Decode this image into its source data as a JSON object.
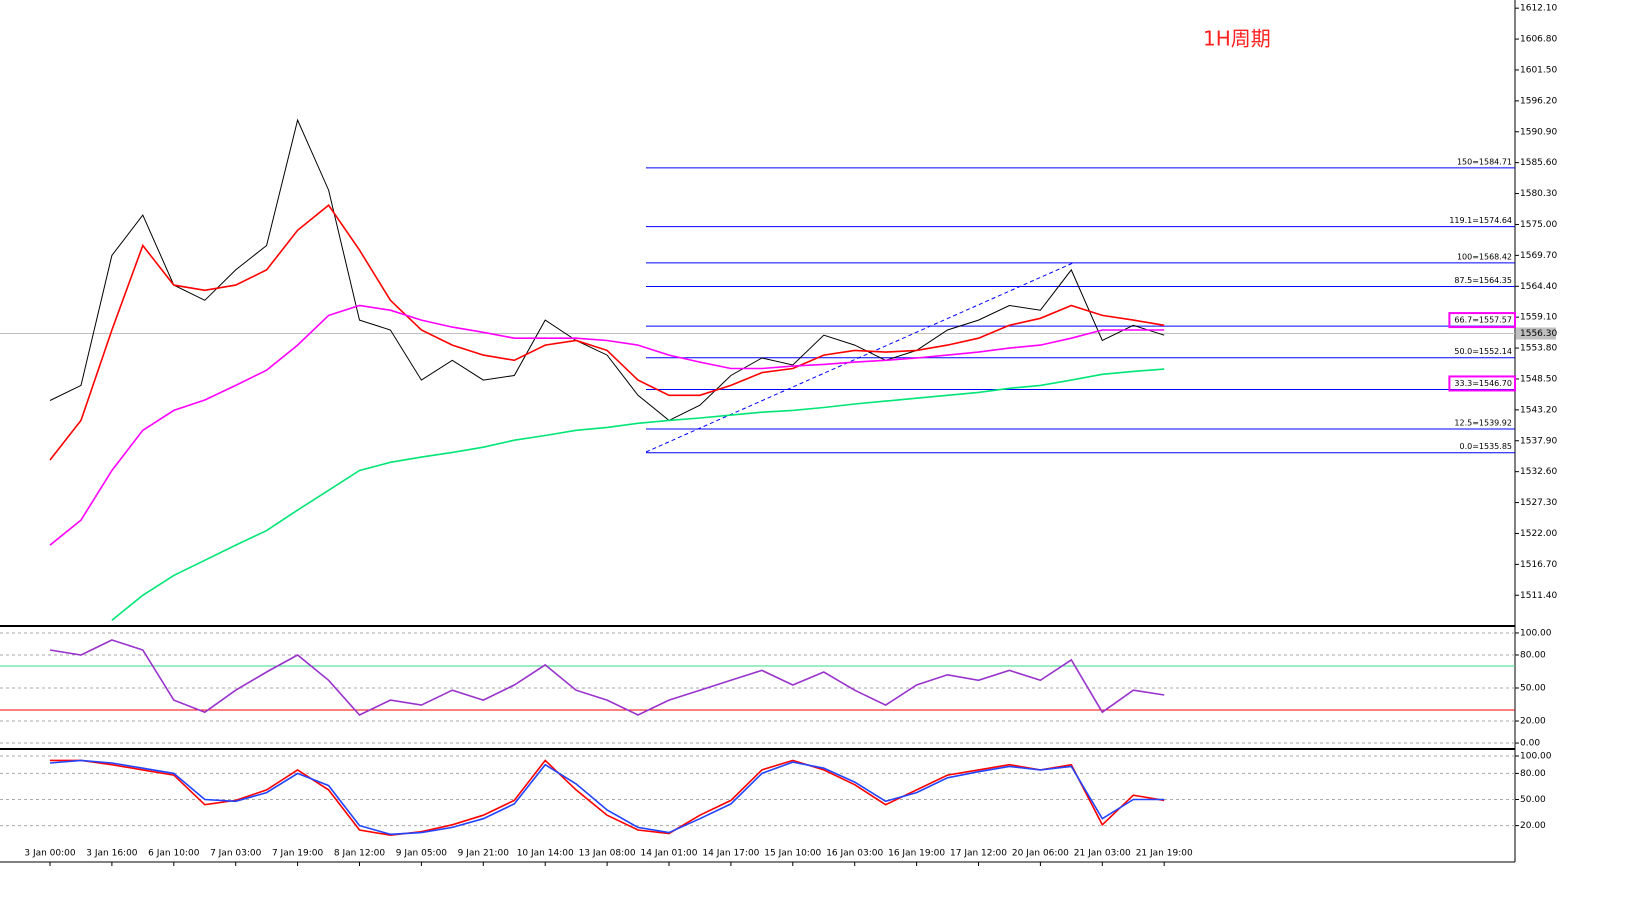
{
  "chart_data": [
    {
      "type": "line",
      "annotation": "1H周期",
      "categories": [
        "3 Jan 00:00",
        null,
        "3 Jan 16:00",
        null,
        "6 Jan 10:00",
        null,
        "7 Jan 03:00",
        null,
        "7 Jan 19:00",
        null,
        "8 Jan 12:00",
        null,
        "9 Jan 05:00",
        null,
        "9 Jan 21:00",
        null,
        "10 Jan 14:00",
        null,
        "13 Jan 08:00",
        null,
        "14 Jan 01:00",
        null,
        "14 Jan 17:00",
        null,
        "15 Jan 10:00",
        null,
        "16 Jan 03:00",
        null,
        "16 Jan 19:00",
        null,
        "17 Jan 12:00",
        null,
        "20 Jan 06:00",
        null,
        "21 Jan 03:00",
        null,
        "21 Jan 19:00"
      ],
      "series": [
        {
          "color": "#000000",
          "values": [
            1544.8,
            1547.4,
            1569.7,
            1576.6,
            1564.6,
            1562.0,
            1567.2,
            1571.4,
            1592.9,
            1580.9,
            1558.6,
            1556.9,
            1548.3,
            1551.7,
            1548.3,
            1549.1,
            1558.6,
            1555.1,
            1552.6,
            1545.7,
            1541.4,
            1544.0,
            1549.1,
            1552.1,
            1550.9,
            1556.0,
            1554.3,
            1551.7,
            1553.4,
            1556.9,
            1558.6,
            1561.1,
            1560.3,
            1567.2,
            1555.1,
            1557.7,
            1556.0
          ]
        },
        {
          "color": "#ff0000",
          "values": [
            1534.6,
            1541.4,
            1556.9,
            1571.4,
            1564.6,
            1563.7,
            1564.6,
            1567.2,
            1574.0,
            1578.3,
            1570.6,
            1562.0,
            1556.9,
            1554.3,
            1552.6,
            1551.7,
            1554.3,
            1555.1,
            1553.4,
            1548.3,
            1545.7,
            1545.7,
            1547.4,
            1549.6,
            1550.3,
            1552.6,
            1553.4,
            1553.1,
            1553.4,
            1554.3,
            1555.5,
            1557.7,
            1558.9,
            1561.1,
            1559.4,
            1558.6,
            1557.7
          ]
        },
        {
          "color": "#ff00ff",
          "values": [
            1520.0,
            1524.3,
            1532.8,
            1539.7,
            1543.1,
            1544.9,
            1547.4,
            1550.0,
            1554.3,
            1559.4,
            1561.1,
            1560.3,
            1558.6,
            1557.4,
            1556.5,
            1555.5,
            1555.5,
            1555.5,
            1555.1,
            1554.3,
            1552.6,
            1551.4,
            1550.3,
            1550.3,
            1550.7,
            1551.0,
            1551.4,
            1551.7,
            1552.1,
            1552.6,
            1553.1,
            1553.8,
            1554.3,
            1555.5,
            1556.9,
            1556.9,
            1556.9
          ]
        },
        {
          "color": "#00e676",
          "values": [
            null,
            null,
            1507.1,
            1511.4,
            1514.8,
            1517.4,
            1520.0,
            1522.5,
            1526.0,
            1529.4,
            1532.8,
            1534.2,
            1535.1,
            1535.9,
            1536.8,
            1538.0,
            1538.8,
            1539.7,
            1540.2,
            1540.9,
            1541.4,
            1541.8,
            1542.3,
            1542.8,
            1543.1,
            1543.6,
            1544.2,
            1544.7,
            1545.2,
            1545.7,
            1546.2,
            1546.9,
            1547.4,
            1548.3,
            1549.3,
            1549.8,
            1550.2
          ]
        }
      ],
      "ylim": [
        1506.3,
        1613.5
      ],
      "yticks": [
        {
          "value": 1612.1,
          "label": "1612.10"
        },
        {
          "value": 1606.8,
          "label": "1606.80"
        },
        {
          "value": 1601.5,
          "label": "1601.50"
        },
        {
          "value": 1596.2,
          "label": "1596.20"
        },
        {
          "value": 1590.9,
          "label": "1590.90"
        },
        {
          "value": 1585.6,
          "label": "1585.60"
        },
        {
          "value": 1580.3,
          "label": "1580.30"
        },
        {
          "value": 1575,
          "label": "1575.00"
        },
        {
          "value": 1569.7,
          "label": "1569.70"
        },
        {
          "value": 1564.4,
          "label": "1564.40"
        },
        {
          "value": 1559.1,
          "label": "1559.10"
        },
        {
          "value": 1553.8,
          "label": "1553.80"
        },
        {
          "value": 1548.5,
          "label": "1548.50"
        },
        {
          "value": 1543.2,
          "label": "1543.20"
        },
        {
          "value": 1537.9,
          "label": "1537.90"
        },
        {
          "value": 1532.6,
          "label": "1532.60"
        },
        {
          "value": 1527.3,
          "label": "1527.30"
        },
        {
          "value": 1522,
          "label": "1522.00"
        },
        {
          "value": 1516.7,
          "label": "1516.70"
        },
        {
          "value": 1511.4,
          "label": "1511.40"
        }
      ],
      "fib_color": "#0000ff",
      "fib_levels": [
        {
          "value": 1584.71,
          "label": "150=1584.71"
        },
        {
          "value": 1574.64,
          "label": "119.1=1574.64"
        },
        {
          "value": 1568.42,
          "label": "100=1568.42"
        },
        {
          "value": 1564.35,
          "label": "87.5=1564.35"
        },
        {
          "value": 1557.57,
          "label": "66.7=1557.57",
          "highlight": true
        },
        {
          "value": 1552.14,
          "label": "50.0=1552.14"
        },
        {
          "value": 1546.7,
          "label": "33.3=1546.70",
          "highlight": true
        },
        {
          "value": 1539.92,
          "label": "12.5=1539.92"
        },
        {
          "value": 1535.85,
          "label": "0.0=1535.85"
        }
      ],
      "current_price": {
        "value": 1556.3,
        "label": "1556.30"
      }
    },
    {
      "type": "line",
      "series": [
        {
          "color": "#9933cc",
          "values": [
            84.5,
            80,
            93.6,
            84.5,
            39,
            28,
            48,
            64.5,
            80,
            57,
            25.5,
            39,
            34.5,
            48,
            39,
            52.7,
            71,
            48,
            39,
            25.5,
            39,
            48,
            57,
            66,
            52.7,
            64.5,
            48,
            34.5,
            52.7,
            62,
            57,
            66,
            57,
            75.5,
            28,
            48,
            43.6
          ]
        }
      ],
      "ylim": [
        -4.5,
        104.5
      ],
      "yticks": [
        {
          "value": 100,
          "label": "100.00"
        },
        {
          "value": 80,
          "label": "80.00"
        },
        {
          "value": 50,
          "label": "50.00"
        },
        {
          "value": 20,
          "label": "20.00"
        },
        {
          "value": 0,
          "label": "0.00"
        }
      ],
      "levels": [
        {
          "value": 70,
          "color": "#33dd88"
        },
        {
          "value": 30,
          "color": "#ff0000"
        }
      ]
    },
    {
      "type": "line",
      "series": [
        {
          "color": "#ff0000",
          "values": [
            95,
            95,
            90,
            84,
            78,
            44,
            49,
            61,
            84,
            61,
            15,
            9,
            13,
            21,
            32,
            49,
            95,
            61,
            32,
            15,
            11,
            32,
            49,
            84,
            95,
            84,
            67,
            44,
            61,
            78,
            84,
            90,
            84,
            90,
            21,
            55,
            49
          ]
        },
        {
          "color": "#2244ff",
          "values": [
            92,
            95,
            92,
            86,
            80,
            50,
            48,
            58,
            80,
            66,
            20,
            10,
            12,
            18,
            28,
            45,
            90,
            68,
            38,
            18,
            12,
            28,
            45,
            80,
            93,
            86,
            70,
            48,
            58,
            75,
            82,
            88,
            84,
            88,
            28,
            50,
            50
          ]
        }
      ],
      "ylim": [
        -21.8,
        106.9
      ],
      "yticks": [
        {
          "value": 100,
          "label": "100.00"
        },
        {
          "value": 80,
          "label": "80.00"
        },
        {
          "value": 50,
          "label": "50.00"
        },
        {
          "value": 20,
          "label": "20.00"
        }
      ]
    }
  ]
}
